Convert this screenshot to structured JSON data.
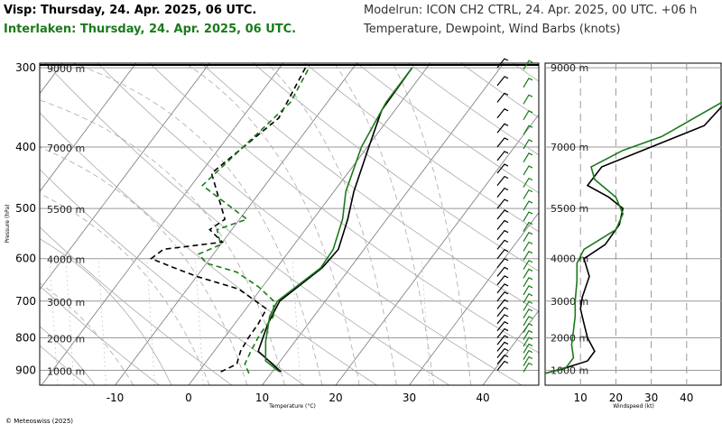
{
  "header": {
    "station_title": "Visp: Thursday, 24. Apr. 2025, 06 UTC.",
    "station_title_2": "Interlaken: Thursday, 24. Apr. 2025, 06 UTC.",
    "model_run": "Modelrun: ICON CH2 CTRL, 24. Apr. 2025, 00 UTC. +06 h",
    "description": "Temperature, Dewpoint, Wind Barbs (knots)"
  },
  "footer": {
    "copyright": "© Meteoswiss (2025)"
  },
  "colors": {
    "visp": "#000000",
    "interlaken": "#1a7a1a",
    "grid": "#9a9a9a"
  },
  "chart_data": [
    {
      "type": "line",
      "title": "",
      "xlabel": "Temperature (°C)",
      "ylabel": "Pressure (hPa)",
      "xlim": [
        -20,
        48
      ],
      "ylim": [
        950,
        295
      ],
      "y_scale": "log",
      "x_ticks": [
        -10,
        0,
        10,
        20,
        30,
        40
      ],
      "y_ticks": [
        300,
        400,
        500,
        600,
        700,
        800,
        900
      ],
      "height_labels": [
        {
          "label": "9000 m",
          "p": 300
        },
        {
          "label": "7000 m",
          "p": 400
        },
        {
          "label": "5500 m",
          "p": 500
        },
        {
          "label": "4000 m",
          "p": 600
        },
        {
          "label": "3000 m",
          "p": 700
        },
        {
          "label": "2000 m",
          "p": 800
        },
        {
          "label": "1000 m",
          "p": 900
        }
      ],
      "series": [
        {
          "name": "Visp",
          "kind": "temperature",
          "color": "#000000",
          "dash": false,
          "points": [
            [
              11.2,
              905
            ],
            [
              6,
              840
            ],
            [
              4.5,
              760
            ],
            [
              3.8,
              700
            ],
            [
              6.2,
              620
            ],
            [
              6.5,
              580
            ],
            [
              4.7,
              520
            ],
            [
              2.7,
              470
            ],
            [
              0.2,
              400
            ],
            [
              -1.8,
              350
            ],
            [
              -2,
              300
            ]
          ]
        },
        {
          "name": "Visp",
          "kind": "dewpoint",
          "color": "#000000",
          "dash": true,
          "points": [
            [
              3,
              905
            ],
            [
              4.4,
              880
            ],
            [
              3.6,
              840
            ],
            [
              3.3,
              800
            ],
            [
              3.2,
              760
            ],
            [
              2.8,
              720
            ],
            [
              -3,
              670
            ],
            [
              -10,
              640
            ],
            [
              -14,
              620
            ],
            [
              -18,
              600
            ],
            [
              -17.3,
              580
            ],
            [
              -10,
              565
            ],
            [
              -13,
              540
            ],
            [
              -12,
              520
            ],
            [
              -18.5,
              440
            ],
            [
              -15,
              360
            ],
            [
              -16.5,
              300
            ]
          ]
        },
        {
          "name": "Interlaken",
          "kind": "temperature",
          "color": "#1a7a1a",
          "dash": false,
          "points": [
            [
              11,
              905
            ],
            [
              8,
              870
            ],
            [
              6,
              810
            ],
            [
              4,
              740
            ],
            [
              3.5,
              700
            ],
            [
              6,
              620
            ],
            [
              5.8,
              580
            ],
            [
              4,
              520
            ],
            [
              1.6,
              470
            ],
            [
              -0.8,
              400
            ],
            [
              -2,
              340
            ],
            [
              -2,
              300
            ]
          ]
        },
        {
          "name": "Interlaken",
          "kind": "dewpoint",
          "color": "#1a7a1a",
          "dash": true,
          "points": [
            [
              7,
              910
            ],
            [
              5.5,
              880
            ],
            [
              5,
              840
            ],
            [
              4.5,
              790
            ],
            [
              4.5,
              740
            ],
            [
              3,
              700
            ],
            [
              -0.5,
              665
            ],
            [
              -5,
              630
            ],
            [
              -10,
              610
            ],
            [
              -12,
              590
            ],
            [
              -10,
              570
            ],
            [
              -12,
              540
            ],
            [
              -9,
              520
            ],
            [
              -18.5,
              460
            ],
            [
              -15,
              340
            ],
            [
              -16,
              300
            ]
          ]
        }
      ]
    },
    {
      "type": "line",
      "xlabel": "Windspeed (kt)",
      "xlim": [
        0,
        50
      ],
      "x_ticks": [
        10,
        20,
        30,
        40
      ],
      "height_labels": [
        "9000 m",
        "7000 m",
        "5500 m",
        "4000 m",
        "3000 m",
        "2000 m",
        "1000 m"
      ],
      "series": [
        {
          "name": "Visp",
          "color": "#000000",
          "points": [
            [
              0,
              910
            ],
            [
              5,
              895
            ],
            [
              12,
              870
            ],
            [
              14,
              840
            ],
            [
              12,
              800
            ],
            [
              11,
              760
            ],
            [
              10,
              720
            ],
            [
              10.5,
              690
            ],
            [
              12.5,
              640
            ],
            [
              11,
              600
            ],
            [
              17,
              570
            ],
            [
              21,
              530
            ],
            [
              22,
              500
            ],
            [
              18,
              480
            ],
            [
              12,
              460
            ],
            [
              16,
              430
            ],
            [
              30,
              400
            ],
            [
              45,
              370
            ],
            [
              50,
              345
            ]
          ]
        },
        {
          "name": "Interlaken",
          "color": "#1a7a1a",
          "points": [
            [
              0,
              910
            ],
            [
              6,
              890
            ],
            [
              8,
              860
            ],
            [
              7.5,
              820
            ],
            [
              8,
              780
            ],
            [
              8.5,
              740
            ],
            [
              8.5,
              700
            ],
            [
              9,
              650
            ],
            [
              9,
              610
            ],
            [
              11,
              580
            ],
            [
              20,
              540
            ],
            [
              22,
              510
            ],
            [
              20,
              480
            ],
            [
              14,
              450
            ],
            [
              13,
              430
            ],
            [
              22,
              405
            ],
            [
              33,
              385
            ],
            [
              50,
              340
            ]
          ]
        }
      ]
    }
  ]
}
